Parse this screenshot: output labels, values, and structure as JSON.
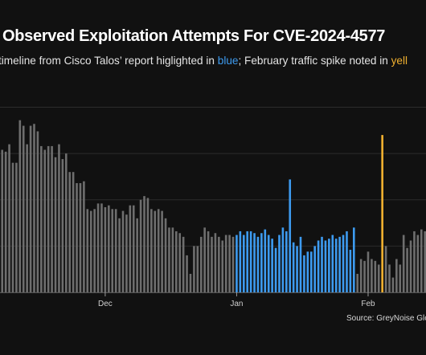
{
  "chart_data": {
    "type": "bar",
    "title": "Observed Exploitation Attempts For CVE-2024-4577",
    "subtitle": {
      "before": "timeline from Cisco Talos’ report higlighted in ",
      "blue_word": "blue",
      "middle": "; February traffic spike noted in ",
      "yellow_word": "yell"
    },
    "source": "Source: GreyNoise Glob",
    "x_tick_labels": [
      "Dec",
      "Jan",
      "Feb"
    ],
    "x_tick_positions": [
      30,
      67,
      104
    ],
    "grid": "horizontal",
    "ylim": [
      0,
      105
    ],
    "colors": {
      "default": "#6e6e6e",
      "talos": "#3d9bf0",
      "spike": "#f0b030",
      "background": "#111111"
    },
    "highlight_blue_range": [
      67,
      100
    ],
    "highlight_yellow_index": 108,
    "values": [
      80,
      77,
      76,
      80,
      70,
      70,
      93,
      90,
      80,
      90,
      91,
      87,
      79,
      77,
      79,
      79,
      73,
      80,
      72,
      75,
      65,
      65,
      59,
      59,
      60,
      45,
      44,
      45,
      48,
      48,
      46,
      47,
      45,
      45,
      40,
      44,
      42,
      47,
      47,
      40,
      50,
      52,
      51,
      45,
      44,
      45,
      44,
      40,
      35,
      35,
      33,
      32,
      30,
      20,
      10,
      25,
      25,
      30,
      35,
      33,
      30,
      32,
      30,
      28,
      31,
      31,
      30,
      31,
      33,
      31,
      33,
      33,
      32,
      30,
      32,
      34,
      31,
      29,
      24,
      31,
      35,
      33,
      61,
      27,
      25,
      30,
      20,
      22,
      22,
      25,
      28,
      30,
      28,
      29,
      31,
      29,
      30,
      31,
      33,
      23,
      35,
      10,
      18,
      17,
      22,
      18,
      17,
      15,
      85,
      25,
      15,
      8,
      18,
      15,
      31,
      24,
      28,
      33,
      31,
      34,
      33,
      34,
      29,
      38,
      49,
      36,
      34,
      28,
      32,
      38,
      47,
      36
    ]
  }
}
